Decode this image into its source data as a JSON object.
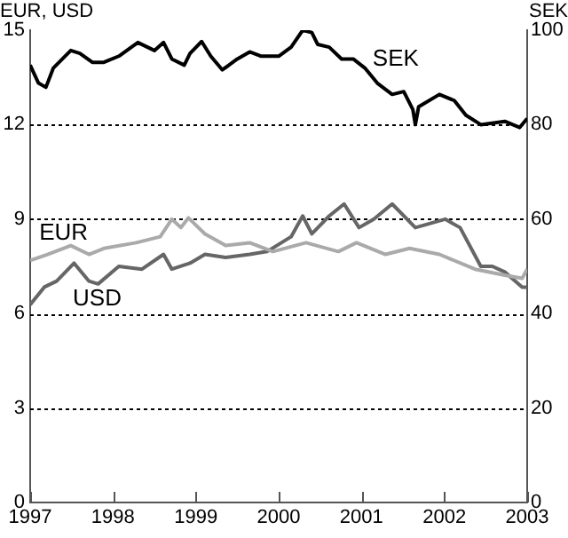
{
  "chart_data": {
    "type": "line",
    "ylabel": "EUR, USD",
    "y2label": "SEK",
    "xlim": [
      1997,
      2003
    ],
    "xticks": [
      1997,
      1998,
      1999,
      2000,
      2001,
      2002,
      2003
    ],
    "ylim": [
      0,
      15
    ],
    "yticks": [
      0,
      3,
      6,
      9,
      12,
      15
    ],
    "y2lim": [
      0,
      100
    ],
    "y2ticks": [
      0,
      20,
      40,
      60,
      80,
      100
    ],
    "grid": "y",
    "legend": false,
    "marker": "none",
    "line_style": "solid",
    "series": [
      {
        "name": "EUR",
        "color": "#aaaaaa",
        "x": [
          1997.0,
          1997.21,
          1997.49,
          1997.71,
          1997.89,
          1998.28,
          1998.57,
          1998.71,
          1998.82,
          1998.91,
          1999.11,
          1999.36,
          1999.65,
          1999.93,
          2000.33,
          2000.72,
          2000.94,
          2001.29,
          2001.58,
          2001.94,
          2002.37,
          2002.73,
          2002.94,
          2003.0
        ],
        "values": [
          7.69,
          7.88,
          8.16,
          7.88,
          8.07,
          8.25,
          8.44,
          9.0,
          8.73,
          9.04,
          8.53,
          8.16,
          8.25,
          7.97,
          8.25,
          7.97,
          8.25,
          7.88,
          8.07,
          7.88,
          7.41,
          7.22,
          7.12,
          7.41
        ]
      },
      {
        "name": "USD",
        "color": "#666666",
        "x": [
          1997.0,
          1997.17,
          1997.32,
          1997.53,
          1997.71,
          1997.82,
          1998.07,
          1998.35,
          1998.61,
          1998.71,
          1998.93,
          1999.11,
          1999.36,
          1999.65,
          1999.86,
          2000.15,
          2000.29,
          2000.4,
          2000.61,
          2000.79,
          2000.97,
          2001.15,
          2001.37,
          2001.65,
          2002.01,
          2002.19,
          2002.44,
          2002.58,
          2002.73,
          2002.94,
          2003.0
        ],
        "values": [
          6.28,
          6.84,
          7.03,
          7.6,
          7.03,
          6.94,
          7.5,
          7.41,
          7.88,
          7.41,
          7.6,
          7.88,
          7.78,
          7.88,
          7.97,
          8.44,
          9.1,
          8.53,
          9.1,
          9.48,
          8.73,
          9.0,
          9.48,
          8.73,
          9.0,
          8.73,
          7.5,
          7.5,
          7.32,
          6.84,
          6.84
        ]
      },
      {
        "name": "SEK",
        "color": "#000000",
        "axis": "y2",
        "x": [
          1997.0,
          1997.1,
          1997.19,
          1997.28,
          1997.49,
          1997.6,
          1997.75,
          1997.89,
          1998.07,
          1998.3,
          1998.5,
          1998.61,
          1998.71,
          1998.86,
          1998.93,
          1999.07,
          1999.18,
          1999.32,
          1999.5,
          1999.65,
          1999.79,
          2000.0,
          2000.15,
          2000.29,
          2000.4,
          2000.47,
          2000.61,
          2000.76,
          2000.9,
          2001.04,
          2001.19,
          2001.37,
          2001.51,
          2001.62,
          2001.65,
          2001.69,
          2001.94,
          2002.12,
          2002.26,
          2002.44,
          2002.73,
          2002.91,
          2003.0
        ],
        "values": [
          92.6,
          88.8,
          87.9,
          92.0,
          95.7,
          95.1,
          93.2,
          93.2,
          94.5,
          97.4,
          95.7,
          97.4,
          93.9,
          92.6,
          95.1,
          97.6,
          94.5,
          91.6,
          93.9,
          95.4,
          94.5,
          94.5,
          96.4,
          100.0,
          99.5,
          97.0,
          96.4,
          93.9,
          93.9,
          92.0,
          88.8,
          86.4,
          87.0,
          83.2,
          80.0,
          83.8,
          86.4,
          85.1,
          82.0,
          80.0,
          80.7,
          79.4,
          81.3
        ]
      }
    ]
  }
}
